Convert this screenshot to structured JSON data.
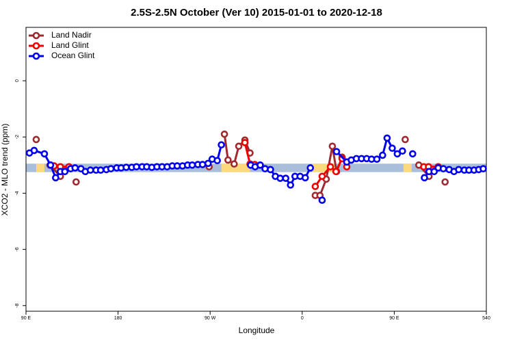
{
  "chart_data": {
    "type": "line",
    "title": "2.5S-2.5N October (Ver 10)   2015-01-01 to 2020-12-18",
    "xlabel": "Longitude",
    "ylabel": "XCO2 - MLO trend (ppm)",
    "xlim": [
      90,
      540
    ],
    "ylim": [
      -8.2,
      1.9
    ],
    "xticks": [
      {
        "value": 90,
        "label": "90 E"
      },
      180,
      {
        "value": 270,
        "label": "90 W"
      },
      {
        "value": 360,
        "label": "0"
      },
      {
        "value": 450,
        "label": "90 E"
      },
      540
    ],
    "yticks": [
      -8,
      -6,
      -4,
      -2,
      0
    ],
    "legend": "top-left",
    "band": {
      "ymin": -3.25,
      "ymax": -2.95,
      "color": "#a8bedb",
      "land_color": "#fcd97a",
      "land": [
        [
          100,
          108
        ],
        [
          281,
          309
        ],
        [
          370,
          393
        ],
        [
          459,
          467
        ]
      ]
    },
    "series": [
      {
        "name": "Land Nadir",
        "color": "#9e2a2f",
        "x": [
          100,
          null,
          113.5,
          123.6,
          null,
          139,
          null,
          269,
          null,
          284,
          287.5,
          293.5,
          298,
          304,
          309,
          null,
          372.8,
          377.4,
          383.5,
          389.5,
          393.6,
          399,
          null,
          460.7,
          null,
          474,
          484,
          null,
          499.7
        ],
        "values": [
          -2.09,
          null,
          -3.0,
          -3.4,
          null,
          -3.6,
          null,
          -3.06,
          null,
          -1.9,
          -2.82,
          -2.96,
          -2.33,
          -2.11,
          -2.57,
          null,
          -4.08,
          -4.08,
          -3.5,
          -2.33,
          -3.23,
          -2.72,
          null,
          -2.09,
          null,
          -3.0,
          -3.4,
          null,
          -3.6
        ]
      },
      {
        "name": "Land Glint",
        "color": "#ee0000",
        "x": [
          117.5,
          123.6,
          132,
          null,
          304,
          309,
          313.6,
          null,
          372.8,
          379.5,
          387.6,
          393,
          399,
          403.6,
          null,
          478.8,
          483.5,
          493
        ],
        "values": [
          -3.03,
          -3.06,
          -3.06,
          null,
          -2.2,
          -2.96,
          -2.98,
          null,
          -3.76,
          -3.4,
          -3.06,
          -3.23,
          -2.77,
          -3.06,
          null,
          -3.06,
          -3.06,
          -3.06
        ]
      },
      {
        "name": "Ocean Glint",
        "color": "#0000ee",
        "x": [
          93.4,
          98,
          108,
          114,
          119,
          123.6,
          128,
          133.6,
          138,
          143.7,
          148,
          153,
          158.5,
          163,
          168.6,
          173,
          178.7,
          183,
          188,
          193.4,
          198,
          203.5,
          208,
          213,
          218,
          223,
          228,
          233,
          237.8,
          243,
          248,
          252.5,
          258,
          262.6,
          268,
          272,
          277,
          281,
          null,
          309.6,
          314,
          319,
          323.7,
          329,
          333.8,
          338.5,
          343.9,
          348.6,
          353,
          358,
          363,
          368,
          null,
          379.5,
          null,
          393.6,
          403.6,
          408,
          413,
          418,
          423,
          427.8,
          433,
          438.6,
          443,
          448,
          453,
          458,
          null,
          468,
          null,
          479.5,
          484,
          489,
          493,
          498,
          503.7,
          508.4,
          513,
          518.5,
          523,
          528,
          532.6,
          537
        ],
        "values": [
          -2.57,
          -2.48,
          -2.6,
          -3.0,
          -3.45,
          -3.23,
          -3.23,
          -3.13,
          -3.1,
          -3.13,
          -3.23,
          -3.18,
          -3.18,
          -3.18,
          -3.16,
          -3.13,
          -3.1,
          -3.1,
          -3.08,
          -3.08,
          -3.06,
          -3.06,
          -3.06,
          -3.08,
          -3.06,
          -3.06,
          -3.06,
          -3.03,
          -3.03,
          -3.03,
          -3.0,
          -3.0,
          -2.98,
          -2.98,
          -2.94,
          -2.79,
          -2.84,
          -2.28,
          null,
          -3.0,
          -3.06,
          -3.0,
          -3.13,
          -3.16,
          -3.4,
          -3.47,
          -3.47,
          -3.71,
          -3.4,
          -3.4,
          -3.45,
          -3.1,
          null,
          -4.25,
          null,
          -2.52,
          -2.89,
          -2.82,
          -2.77,
          -2.77,
          -2.77,
          -2.79,
          -2.79,
          -2.65,
          -2.04,
          -2.4,
          -2.6,
          -2.5,
          null,
          -2.6,
          null,
          -3.45,
          -3.23,
          -3.23,
          -3.1,
          -3.13,
          -3.16,
          -3.23,
          -3.16,
          -3.18,
          -3.18,
          -3.18,
          -3.16,
          -3.13
        ]
      }
    ]
  }
}
